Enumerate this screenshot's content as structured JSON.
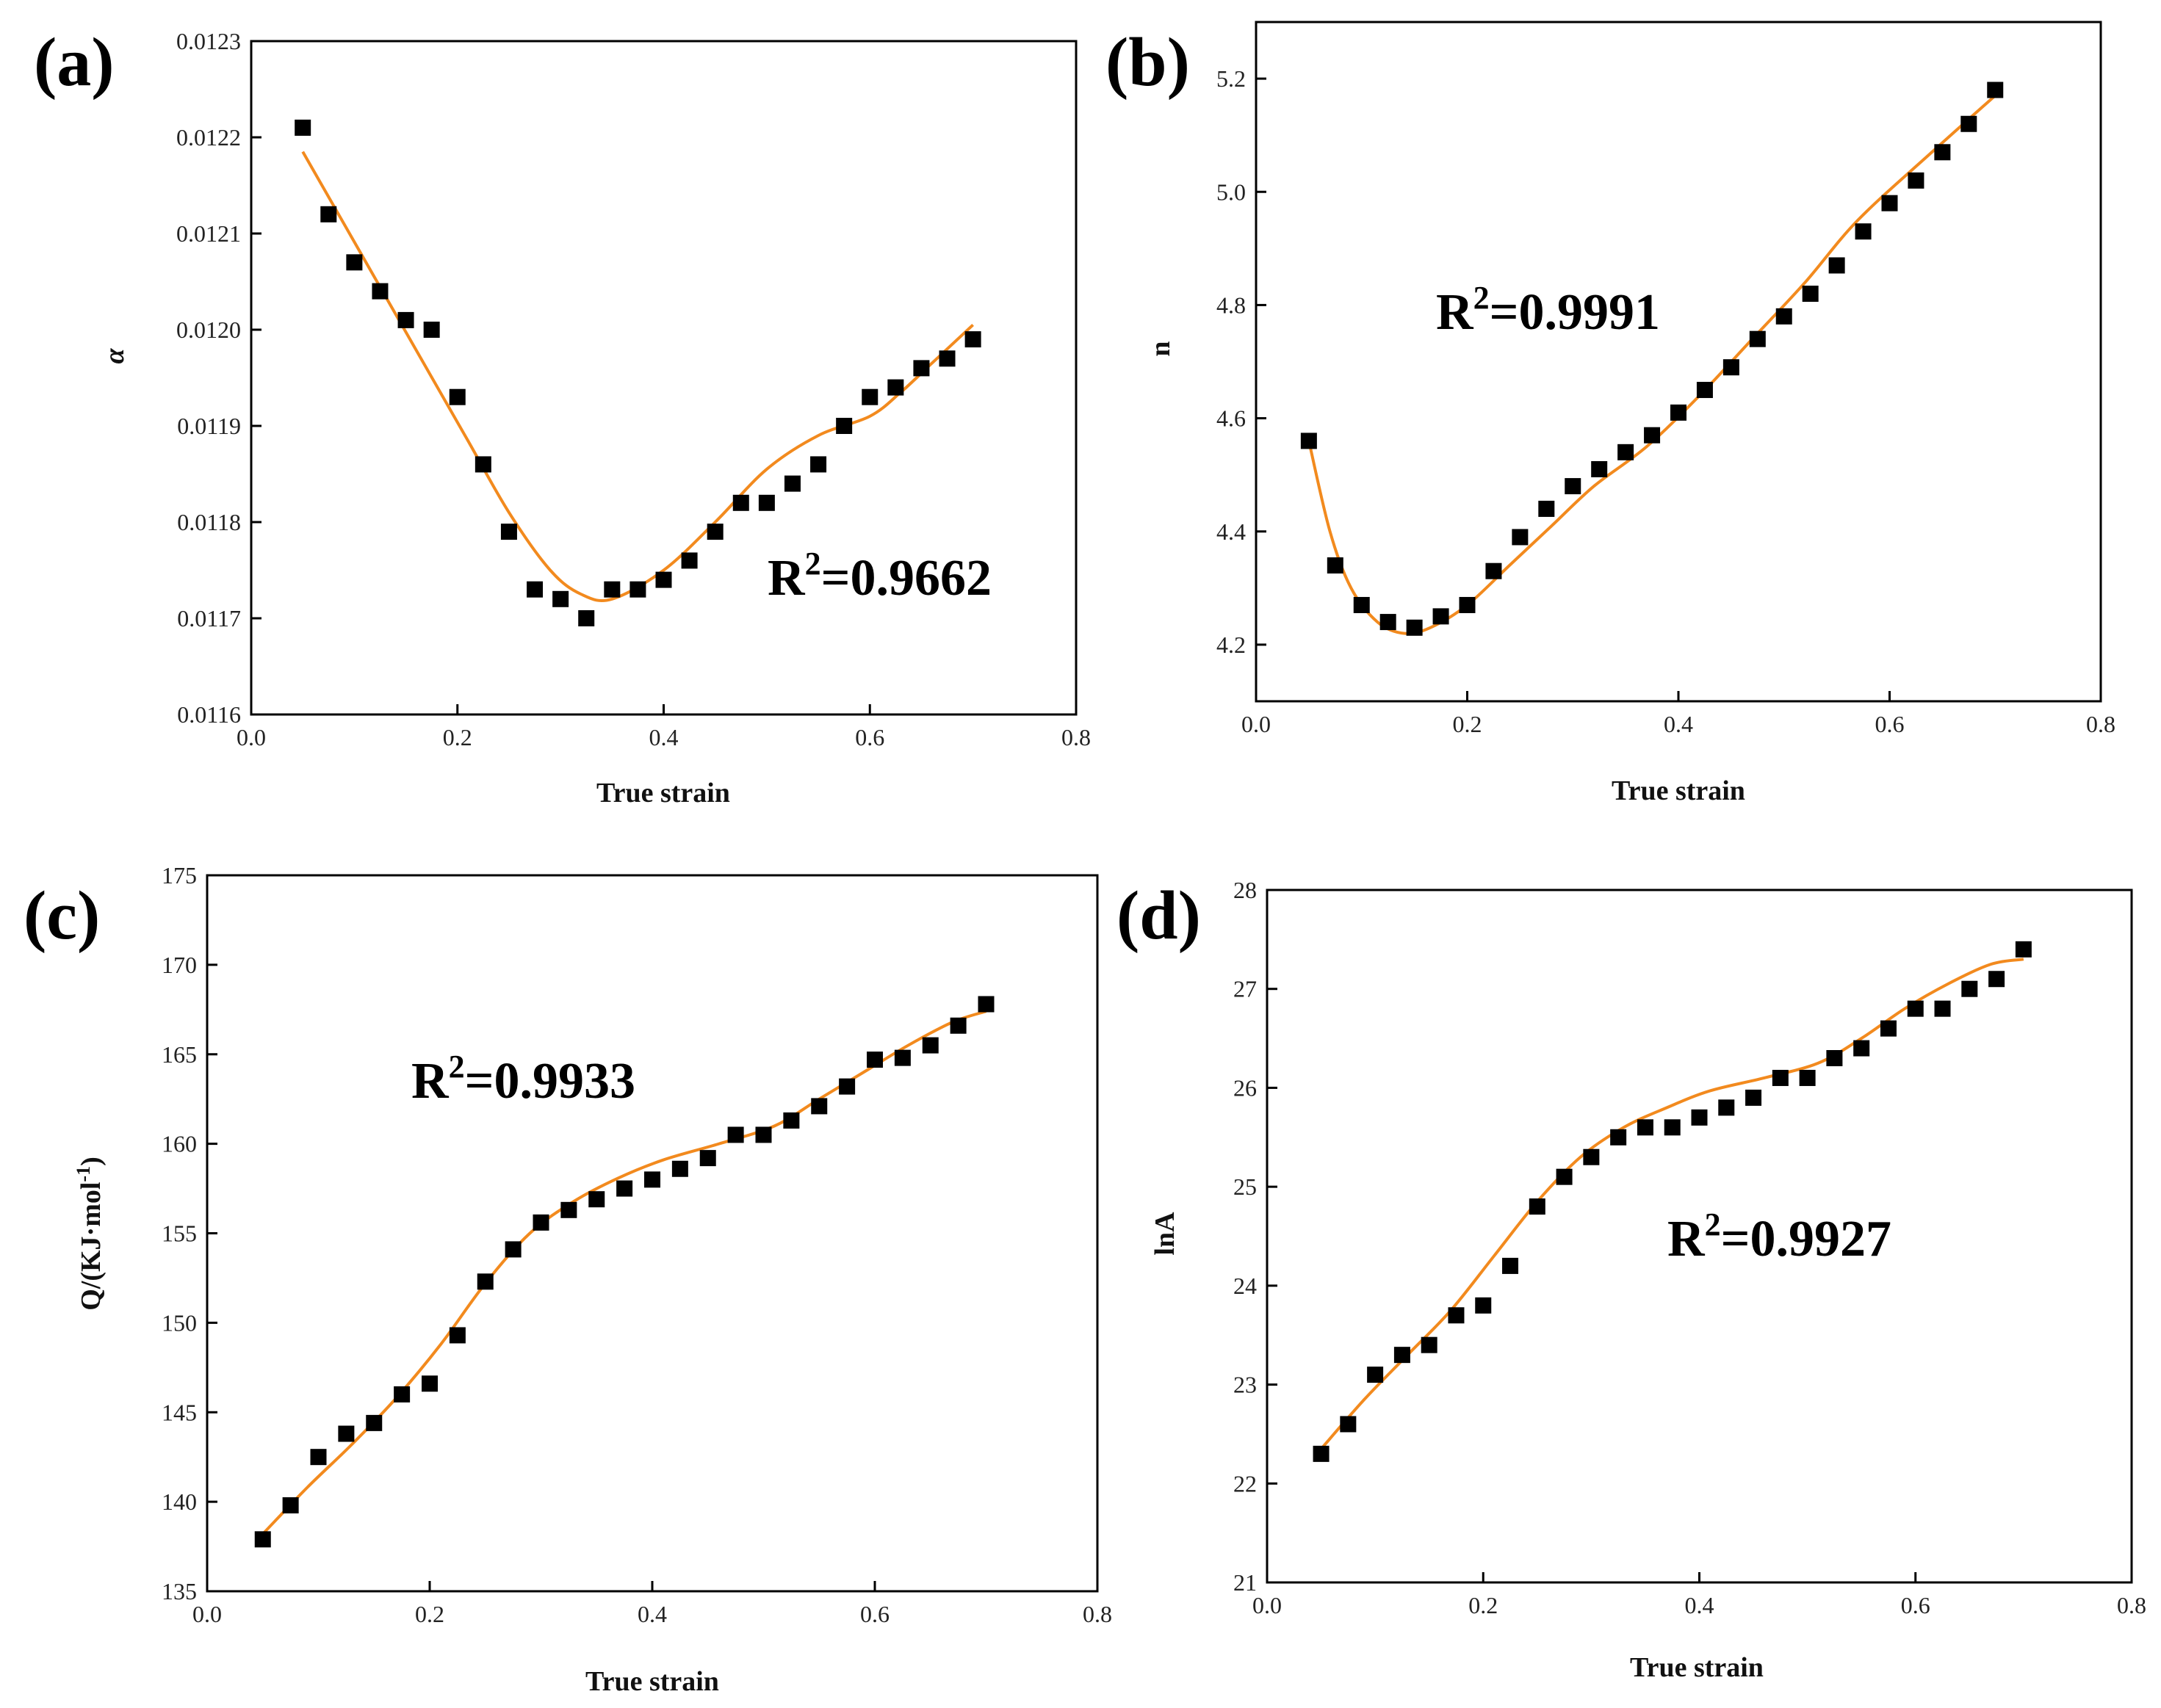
{
  "colors": {
    "fit": "#F28A1E",
    "marker": "#000000",
    "axis": "#000000"
  },
  "chart_data": [
    {
      "type": "scatter",
      "panel_label": "(a)",
      "title": "",
      "xlabel": "True strain",
      "ylabel": "α",
      "xlim": [
        0.0,
        0.8
      ],
      "ylim": [
        0.0116,
        0.0123
      ],
      "xticks": [
        "0.0",
        "0.2",
        "0.4",
        "0.6",
        "0.8"
      ],
      "yticks": [
        "0.0116",
        "0.0117",
        "0.0118",
        "0.0119",
        "0.0120",
        "0.0121",
        "0.0122",
        "0.0123"
      ],
      "r2_main": "R",
      "r2_sup": "2",
      "r2_value": "=0.9662",
      "x": [
        0.05,
        0.075,
        0.1,
        0.125,
        0.15,
        0.175,
        0.2,
        0.225,
        0.25,
        0.275,
        0.3,
        0.325,
        0.35,
        0.375,
        0.4,
        0.425,
        0.45,
        0.475,
        0.5,
        0.525,
        0.55,
        0.575,
        0.6,
        0.625,
        0.65,
        0.675,
        0.7
      ],
      "series": [
        {
          "name": "data",
          "values": [
            0.01221,
            0.01212,
            0.01207,
            0.01204,
            0.01201,
            0.012,
            0.01193,
            0.01186,
            0.01179,
            0.01173,
            0.01172,
            0.0117,
            0.01173,
            0.01173,
            0.01174,
            0.01176,
            0.01179,
            0.01182,
            0.01182,
            0.01184,
            0.01186,
            0.0119,
            0.01193,
            0.01194,
            0.01196,
            0.01197,
            0.01199
          ]
        },
        {
          "name": "fit",
          "values": [
            0.012185,
            0.01211,
            0.012035,
            0.01196,
            0.011885,
            0.01181,
            0.01175,
            0.011725,
            0.01172,
            0.01175,
            0.0118,
            0.011855,
            0.01189,
            0.01191,
            0.011935,
            0.011965,
            0.012005
          ]
        }
      ],
      "fit_x": [
        0.05,
        0.09,
        0.13,
        0.17,
        0.21,
        0.25,
        0.29,
        0.32,
        0.35,
        0.4,
        0.45,
        0.5,
        0.55,
        0.6,
        0.63,
        0.66,
        0.7
      ]
    },
    {
      "type": "scatter",
      "panel_label": "(b)",
      "title": "",
      "xlabel": "True strain",
      "ylabel": "n",
      "xlim": [
        0.0,
        0.8
      ],
      "ylim": [
        4.1,
        5.3
      ],
      "xticks": [
        "0.0",
        "0.2",
        "0.4",
        "0.6",
        "0.8"
      ],
      "yticks": [
        "4.2",
        "4.4",
        "4.6",
        "4.8",
        "5.0",
        "5.2"
      ],
      "r2_main": "R",
      "r2_sup": "2",
      "r2_value": "=0.9991",
      "x": [
        0.05,
        0.075,
        0.1,
        0.125,
        0.15,
        0.175,
        0.2,
        0.225,
        0.25,
        0.275,
        0.3,
        0.325,
        0.35,
        0.375,
        0.4,
        0.425,
        0.45,
        0.475,
        0.5,
        0.525,
        0.55,
        0.575,
        0.6,
        0.625,
        0.65,
        0.675,
        0.7
      ],
      "series": [
        {
          "name": "data",
          "values": [
            4.56,
            4.34,
            4.27,
            4.24,
            4.23,
            4.25,
            4.27,
            4.33,
            4.39,
            4.44,
            4.48,
            4.51,
            4.54,
            4.57,
            4.61,
            4.65,
            4.69,
            4.74,
            4.78,
            4.82,
            4.87,
            4.93,
            4.98,
            5.02,
            5.07,
            5.12,
            5.18
          ]
        },
        {
          "name": "fit",
          "values": [
            4.56,
            4.4,
            4.3,
            4.24,
            4.22,
            4.23,
            4.27,
            4.34,
            4.41,
            4.48,
            4.55,
            4.64,
            4.74,
            4.84,
            4.95,
            5.07,
            5.17
          ]
        }
      ],
      "fit_x": [
        0.05,
        0.07,
        0.09,
        0.115,
        0.14,
        0.165,
        0.2,
        0.24,
        0.28,
        0.32,
        0.37,
        0.42,
        0.47,
        0.52,
        0.57,
        0.64,
        0.7
      ]
    },
    {
      "type": "scatter",
      "panel_label": "(c)",
      "title": "",
      "xlabel": "True strain",
      "ylabel": "Q/(KJ·mol-1)",
      "ylabel_main": "Q/(KJ·mol",
      "ylabel_sup": "-1",
      "ylabel_end": ")",
      "xlim": [
        0.0,
        0.8
      ],
      "ylim": [
        135,
        175
      ],
      "xticks": [
        "0.0",
        "0.2",
        "0.4",
        "0.6",
        "0.8"
      ],
      "yticks": [
        "135",
        "140",
        "145",
        "150",
        "155",
        "160",
        "165",
        "170",
        "175"
      ],
      "r2_main": "R",
      "r2_sup": "2",
      "r2_value": "=0.9933",
      "x": [
        0.05,
        0.075,
        0.1,
        0.125,
        0.15,
        0.175,
        0.2,
        0.225,
        0.25,
        0.275,
        0.3,
        0.325,
        0.35,
        0.375,
        0.4,
        0.425,
        0.45,
        0.475,
        0.5,
        0.525,
        0.55,
        0.575,
        0.6,
        0.625,
        0.65,
        0.675,
        0.7
      ],
      "series": [
        {
          "name": "data",
          "values": [
            137.9,
            139.8,
            142.5,
            143.8,
            144.4,
            146.0,
            146.6,
            149.3,
            152.3,
            154.1,
            155.6,
            156.3,
            156.9,
            157.5,
            158.0,
            158.6,
            159.2,
            160.5,
            160.5,
            161.3,
            162.1,
            163.2,
            164.7,
            164.8,
            165.5,
            166.6,
            167.8
          ]
        },
        {
          "name": "fit",
          "values": [
            138.2,
            140.8,
            143.2,
            145.8,
            148.8,
            152.2,
            155.0,
            156.8,
            158.1,
            159.1,
            160.0,
            161.0,
            162.5,
            164.0,
            165.5,
            166.8,
            167.4
          ]
        }
      ],
      "fit_x": [
        0.05,
        0.09,
        0.13,
        0.17,
        0.21,
        0.25,
        0.29,
        0.33,
        0.37,
        0.41,
        0.46,
        0.51,
        0.55,
        0.59,
        0.63,
        0.67,
        0.7
      ]
    },
    {
      "type": "scatter",
      "panel_label": "(d)",
      "title": "",
      "xlabel": "True strain",
      "ylabel": "lnA",
      "xlim": [
        0.0,
        0.8
      ],
      "ylim": [
        21,
        28
      ],
      "xticks": [
        "0.0",
        "0.2",
        "0.4",
        "0.6",
        "0.8"
      ],
      "yticks": [
        "21",
        "22",
        "23",
        "24",
        "25",
        "26",
        "27",
        "28"
      ],
      "r2_main": "R",
      "r2_sup": "2",
      "r2_value": "=0.9927",
      "x": [
        0.05,
        0.075,
        0.1,
        0.125,
        0.15,
        0.175,
        0.2,
        0.225,
        0.25,
        0.275,
        0.3,
        0.325,
        0.35,
        0.375,
        0.4,
        0.425,
        0.45,
        0.475,
        0.5,
        0.525,
        0.55,
        0.575,
        0.6,
        0.625,
        0.65,
        0.675,
        0.7
      ],
      "series": [
        {
          "name": "data",
          "values": [
            22.3,
            22.6,
            23.1,
            23.3,
            23.4,
            23.7,
            23.8,
            24.2,
            24.8,
            25.1,
            25.3,
            25.5,
            25.6,
            25.6,
            25.7,
            25.8,
            25.9,
            26.1,
            26.1,
            26.3,
            26.4,
            26.6,
            26.8,
            26.8,
            27.0,
            27.1,
            27.4
          ]
        },
        {
          "name": "fit",
          "values": [
            22.35,
            22.85,
            23.3,
            23.75,
            24.3,
            24.85,
            25.3,
            25.6,
            25.8,
            25.97,
            26.1,
            26.25,
            26.5,
            26.8,
            27.05,
            27.25,
            27.3
          ]
        }
      ],
      "fit_x": [
        0.05,
        0.09,
        0.13,
        0.17,
        0.21,
        0.25,
        0.29,
        0.33,
        0.37,
        0.41,
        0.46,
        0.51,
        0.55,
        0.59,
        0.63,
        0.67,
        0.7
      ]
    }
  ]
}
